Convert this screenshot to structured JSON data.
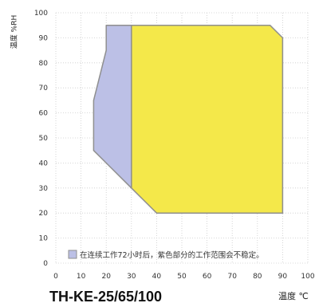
{
  "chart_data": {
    "type": "area",
    "title": "TH-KE-25/65/100",
    "xlabel": "温度 ℃",
    "ylabel": "温度 %RH",
    "xlim": [
      0,
      100
    ],
    "ylim": [
      0,
      100
    ],
    "xticks": [
      0,
      10,
      20,
      30,
      40,
      50,
      60,
      70,
      80,
      90,
      100
    ],
    "yticks": [
      0,
      10,
      20,
      30,
      40,
      50,
      60,
      70,
      80,
      90,
      100
    ],
    "grid": true,
    "colors": {
      "grid": "#cccccc",
      "yellow": "#f4e84a",
      "blue": "#bcc0e6",
      "outline": "#8f8f8f"
    },
    "regions": [
      {
        "label": "",
        "color": "#f4e84a",
        "points": [
          [
            30,
            95
          ],
          [
            85,
            95
          ],
          [
            90,
            90
          ],
          [
            90,
            20
          ],
          [
            40,
            20
          ],
          [
            30,
            30
          ]
        ]
      },
      {
        "label": "在连续工作72小时后，紫色部分的工作范围会不稳定。",
        "color": "#bcc0e6",
        "points": [
          [
            20,
            95
          ],
          [
            30,
            95
          ],
          [
            30,
            30
          ],
          [
            20,
            40
          ],
          [
            15,
            45
          ],
          [
            15,
            65
          ],
          [
            20,
            85
          ]
        ]
      }
    ],
    "legend_placement": "bottom-left"
  }
}
